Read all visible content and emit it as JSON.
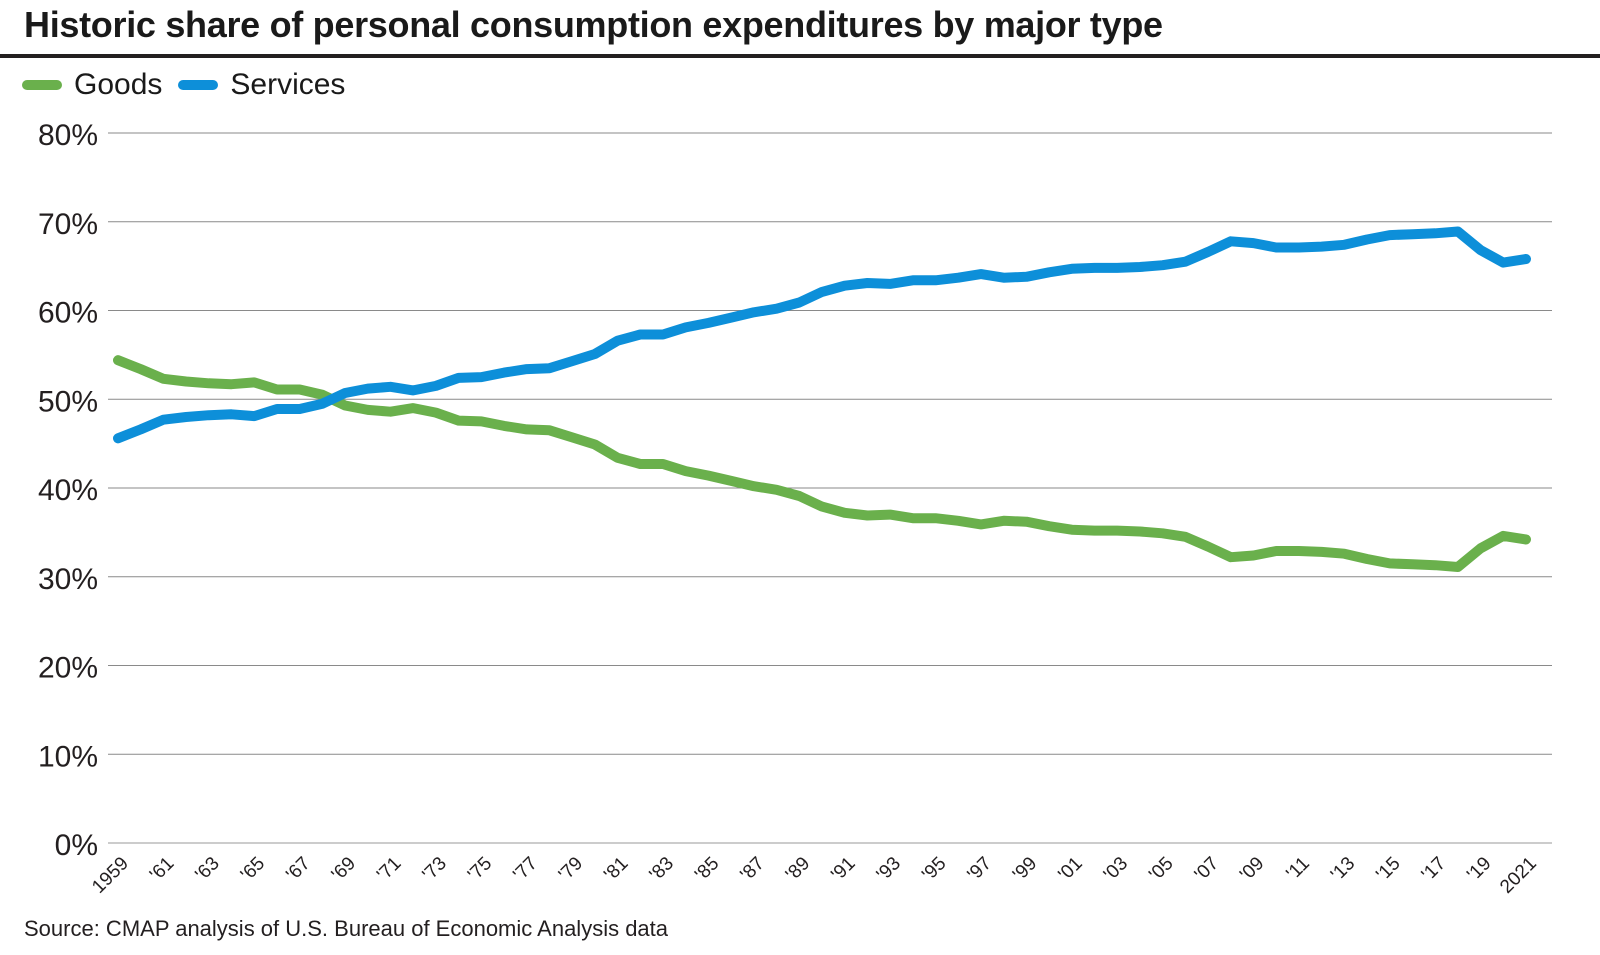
{
  "title": "Historic share of personal consumption expenditures by major type",
  "source": "Source: CMAP analysis of U.S. Bureau of Economic Analysis data",
  "legend": [
    {
      "label": "Goods",
      "color": "#6ab04c"
    },
    {
      "label": "Services",
      "color": "#0d8fd9"
    }
  ],
  "chart_data": {
    "type": "line",
    "title": "Historic share of personal consumption expenditures by major type",
    "xlabel": "",
    "ylabel": "",
    "ylim": [
      0,
      80
    ],
    "yticks": [
      0,
      10,
      20,
      30,
      40,
      50,
      60,
      70,
      80
    ],
    "ytick_labels": [
      "0%",
      "10%",
      "20%",
      "30%",
      "40%",
      "50%",
      "60%",
      "70%",
      "80%"
    ],
    "grid": true,
    "legend_position": "top-left",
    "x": [
      1959,
      1960,
      1961,
      1962,
      1963,
      1964,
      1965,
      1966,
      1967,
      1968,
      1969,
      1970,
      1971,
      1972,
      1973,
      1974,
      1975,
      1976,
      1977,
      1978,
      1979,
      1980,
      1981,
      1982,
      1983,
      1984,
      1985,
      1986,
      1987,
      1988,
      1989,
      1990,
      1991,
      1992,
      1993,
      1994,
      1995,
      1996,
      1997,
      1998,
      1999,
      2000,
      2001,
      2002,
      2003,
      2004,
      2005,
      2006,
      2007,
      2008,
      2009,
      2010,
      2011,
      2012,
      2013,
      2014,
      2015,
      2016,
      2017,
      2018,
      2019,
      2020,
      2021
    ],
    "xtick_labels": [
      "1959",
      "'61",
      "'63",
      "'65",
      "'67",
      "'69",
      "'71",
      "'73",
      "'75",
      "'77",
      "'79",
      "'81",
      "'83",
      "'85",
      "'87",
      "'89",
      "'91",
      "'93",
      "'95",
      "'97",
      "'99",
      "'01",
      "'03",
      "'05",
      "'07",
      "'09",
      "'11",
      "'13",
      "'15",
      "'17",
      "'19",
      "2021"
    ],
    "series": [
      {
        "name": "Goods",
        "color": "#6ab04c",
        "values": [
          54.4,
          53.4,
          52.3,
          52.0,
          51.8,
          51.7,
          51.9,
          51.1,
          51.1,
          50.5,
          49.3,
          48.8,
          48.6,
          49.0,
          48.5,
          47.6,
          47.5,
          47.0,
          46.6,
          46.5,
          45.7,
          44.9,
          43.4,
          42.7,
          42.7,
          41.9,
          41.4,
          40.8,
          40.2,
          39.8,
          39.1,
          37.9,
          37.2,
          36.9,
          37.0,
          36.6,
          36.6,
          36.3,
          35.9,
          36.3,
          36.2,
          35.7,
          35.3,
          35.2,
          35.2,
          35.1,
          34.9,
          34.5,
          33.4,
          32.2,
          32.4,
          32.9,
          32.9,
          32.8,
          32.6,
          32.0,
          31.5,
          31.4,
          31.3,
          31.1,
          33.2,
          34.6,
          34.2
        ]
      },
      {
        "name": "Services",
        "color": "#0d8fd9",
        "values": [
          45.6,
          46.6,
          47.7,
          48.0,
          48.2,
          48.3,
          48.1,
          48.9,
          48.9,
          49.5,
          50.7,
          51.2,
          51.4,
          51.0,
          51.5,
          52.4,
          52.5,
          53.0,
          53.4,
          53.5,
          54.3,
          55.1,
          56.6,
          57.3,
          57.3,
          58.1,
          58.6,
          59.2,
          59.8,
          60.2,
          60.9,
          62.1,
          62.8,
          63.1,
          63.0,
          63.4,
          63.4,
          63.7,
          64.1,
          63.7,
          63.8,
          64.3,
          64.7,
          64.8,
          64.8,
          64.9,
          65.1,
          65.5,
          66.6,
          67.8,
          67.6,
          67.1,
          67.1,
          67.2,
          67.4,
          68.0,
          68.5,
          68.6,
          68.7,
          68.9,
          66.8,
          65.4,
          65.8
        ]
      }
    ]
  }
}
